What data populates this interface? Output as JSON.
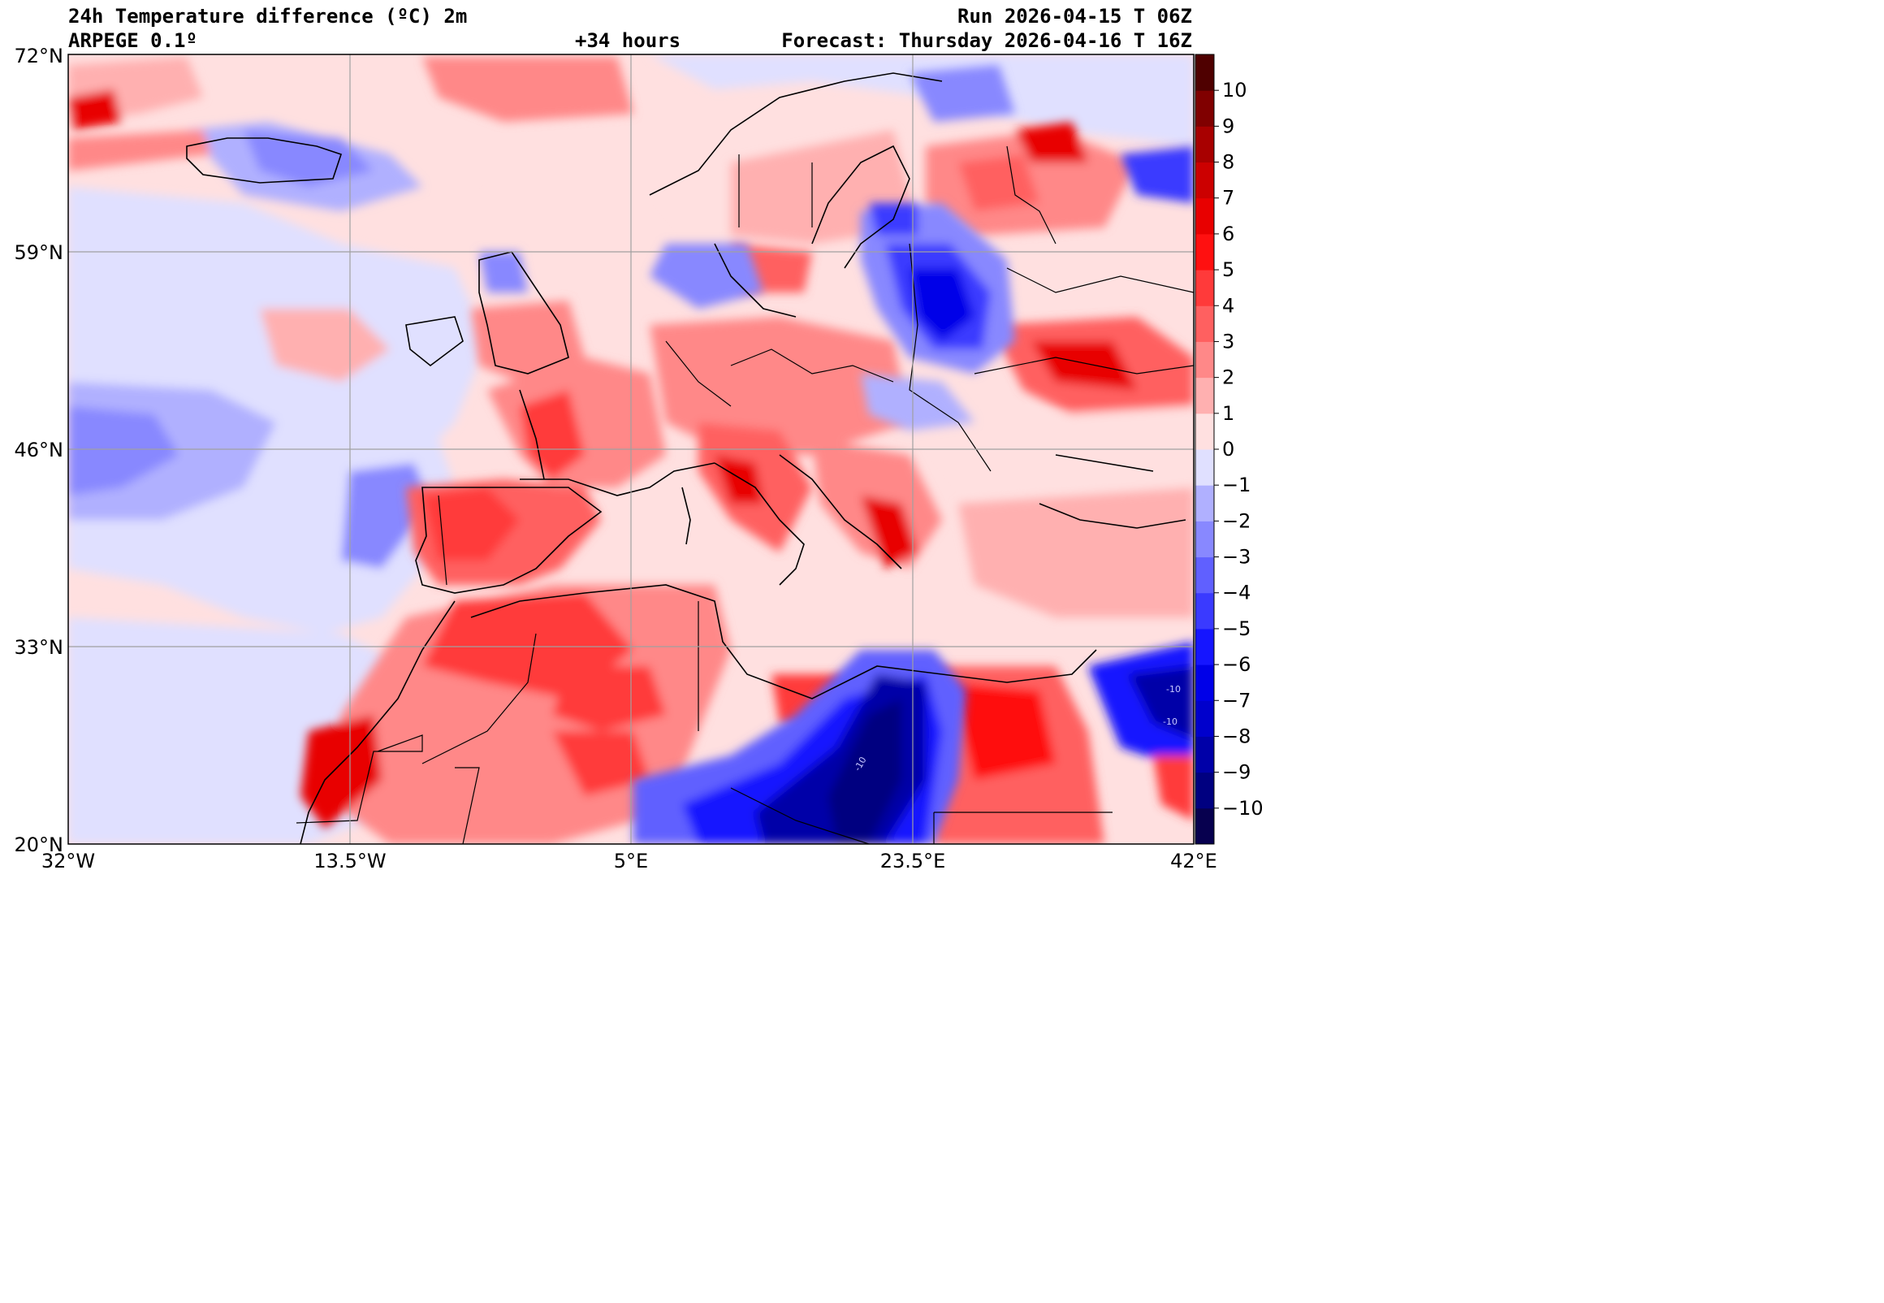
{
  "header": {
    "title": "24h Temperature difference (ºC) 2m",
    "model": "ARPEGE 0.1º",
    "lead": "+34 hours",
    "run": "Run 2026-04-15 T 06Z",
    "forecast": "Forecast: Thursday 2026-04-16 T 16Z"
  },
  "map": {
    "lat_labels": [
      "72°N",
      "59°N",
      "46°N",
      "33°N",
      "20°N"
    ],
    "lon_labels": [
      "32°W",
      "13.5°W",
      "5°E",
      "23.5°E",
      "42°E"
    ],
    "contour_labels": [
      "-10",
      "-10",
      "-10"
    ]
  },
  "colorbar": {
    "tick_labels": [
      "10",
      "9",
      "8",
      "7",
      "6",
      "5",
      "4",
      "3",
      "2",
      "1",
      "0",
      "−1",
      "−2",
      "−3",
      "−4",
      "−5",
      "−6",
      "−7",
      "−8",
      "−9",
      "−10"
    ],
    "colors": [
      "#07004f",
      "#000080",
      "#0000a8",
      "#0000cc",
      "#0000e8",
      "#1515ff",
      "#3a3aff",
      "#6060ff",
      "#8888ff",
      "#b0b0ff",
      "#e0e0ff",
      "#ffe0e0",
      "#ffb0b0",
      "#ff8888",
      "#ff6060",
      "#ff3a3a",
      "#ff1010",
      "#e80000",
      "#cc0000",
      "#a80000",
      "#800000",
      "#4f0000"
    ]
  }
}
